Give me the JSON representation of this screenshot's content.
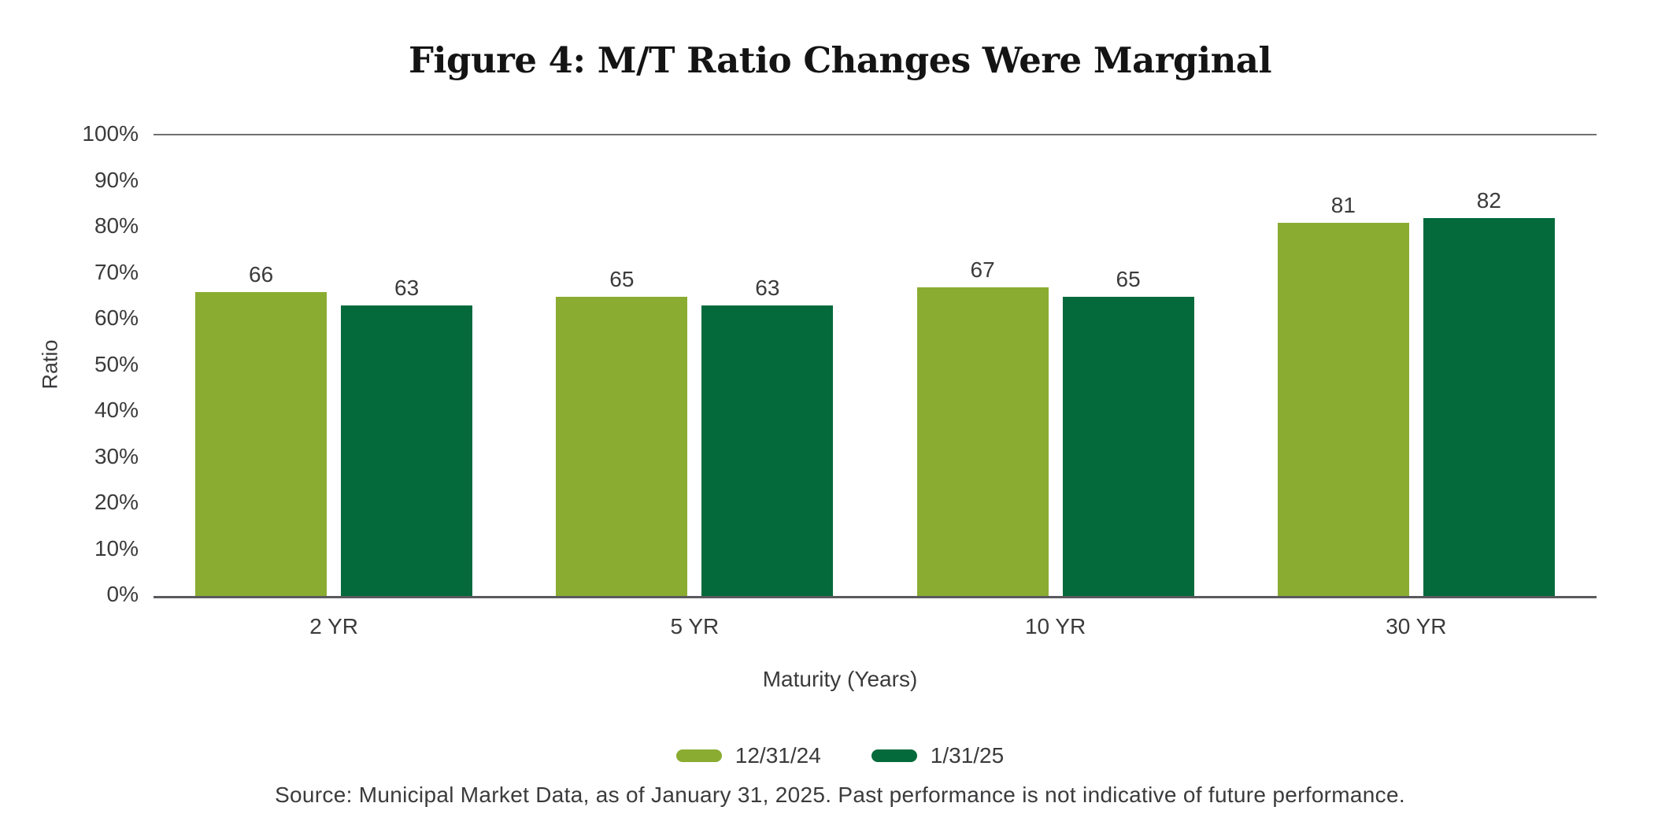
{
  "title": "Figure 4: M/T Ratio Changes Were Marginal",
  "chart_data": {
    "type": "bar",
    "categories": [
      "2 YR",
      "5 YR",
      "10 YR",
      "30 YR"
    ],
    "series": [
      {
        "name": "12/31/24",
        "color": "#8AAC31",
        "values": [
          66,
          65,
          67,
          81
        ]
      },
      {
        "name": "1/31/25",
        "color": "#046A3B",
        "values": [
          63,
          63,
          65,
          82
        ]
      }
    ],
    "xlabel": "Maturity (Years)",
    "ylabel": "Ratio",
    "ylim": [
      0,
      100
    ],
    "ytick_step": 10,
    "yticks": [
      "100%",
      "90%",
      "80%",
      "70%",
      "60%",
      "50%",
      "40%",
      "30%",
      "20%",
      "10%",
      "0%"
    ],
    "grid": "top line only",
    "legend_position": "bottom center",
    "bar_value_labels": true
  },
  "source_note": "Source: Municipal Market Data, as of January 31, 2025. Past performance is not indicative of future performance.",
  "colors": {
    "background": "#FFFFFF",
    "text": "#3B3B3D",
    "title_text": "#141414",
    "top_gridline": "#707073",
    "axis_line": "#5A5A5E",
    "series_light_green": "#8AAC31",
    "series_dark_green": "#046A3B"
  }
}
